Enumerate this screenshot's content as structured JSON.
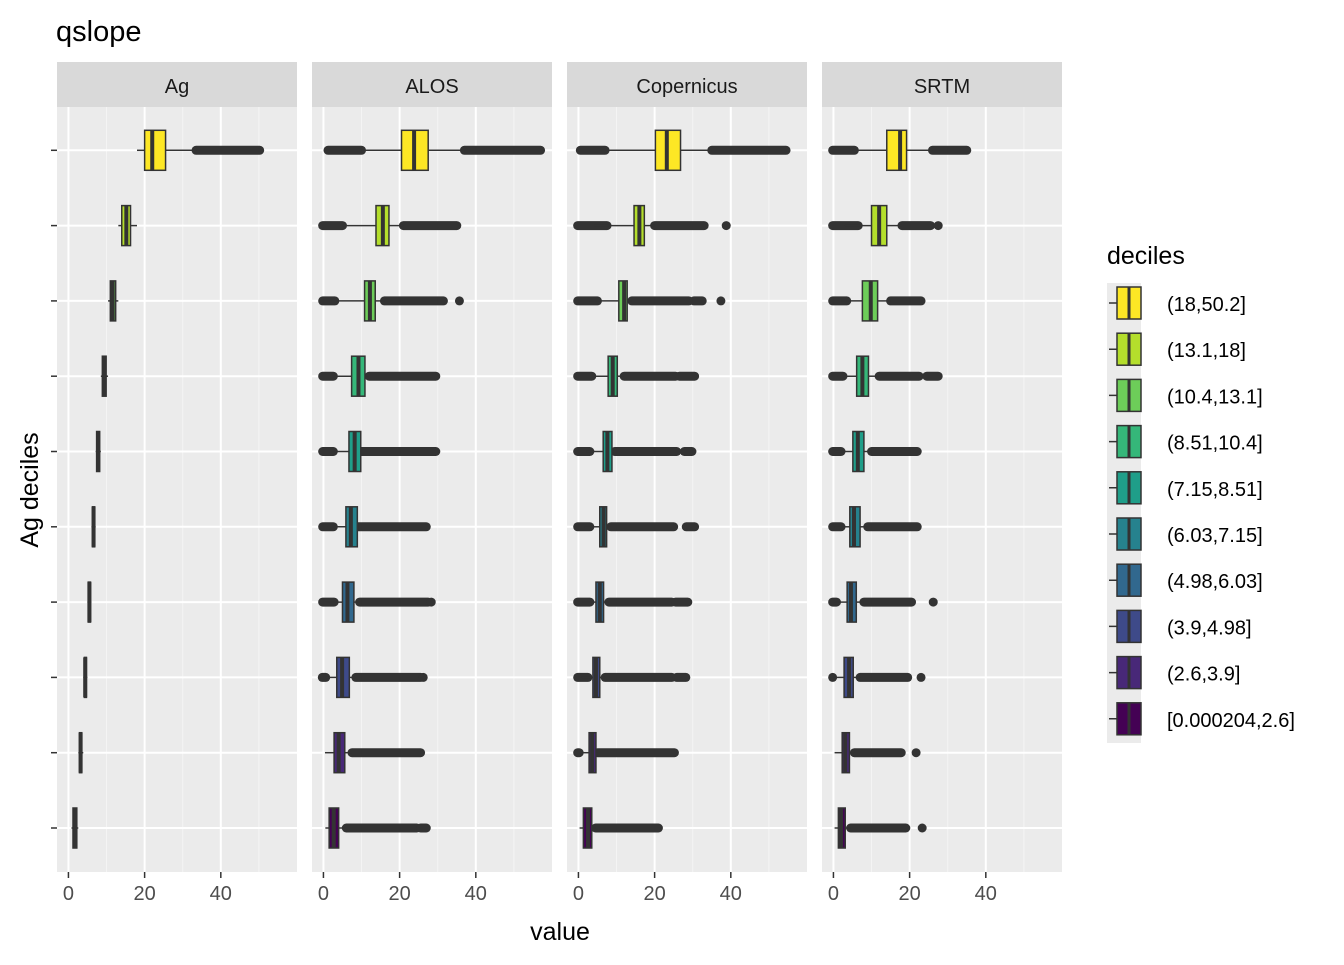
{
  "chart_data": {
    "type": "boxplot",
    "title": "qslope",
    "xlabel": "value",
    "ylabel": "Ag deciles",
    "xlim": [
      -3,
      60
    ],
    "x_ticks": [
      0,
      20,
      40
    ],
    "facets": [
      "Ag",
      "ALOS",
      "Copernicus",
      "SRTM"
    ],
    "legend": {
      "title": "deciles",
      "position": "right",
      "entries": [
        "(18,50.2]",
        "(13.1,18]",
        "(10.4,13.1]",
        "(8.51,10.4]",
        "(7.15,8.51]",
        "(6.03,7.15]",
        "(4.98,6.03]",
        "(3.9,4.98]",
        "(2.6,3.9]",
        "[0.000204,2.6]"
      ],
      "colors": [
        "#FDE725",
        "#B4DE2C",
        "#6DCD59",
        "#35B779",
        "#1F9E89",
        "#26828E",
        "#31688E",
        "#3E4A89",
        "#482878",
        "#440154"
      ]
    },
    "categories": [
      "[0.000204,2.6]",
      "(2.6,3.9]",
      "(3.9,4.98]",
      "(4.98,6.03]",
      "(6.03,7.15]",
      "(7.15,8.51]",
      "(8.51,10.4]",
      "(10.4,13.1]",
      "(13.1,18]",
      "(18,50.2]"
    ],
    "category_colors": [
      "#440154",
      "#482878",
      "#3E4A89",
      "#31688E",
      "#26828E",
      "#1F9E89",
      "#35B779",
      "#6DCD59",
      "#B4DE2C",
      "#FDE725"
    ],
    "series": [
      {
        "name": "Ag",
        "boxes": [
          {
            "lw": 0.8,
            "q1": 1.2,
            "med": 1.8,
            "q3": 2.2,
            "uw": 2.6,
            "outliers": []
          },
          {
            "lw": 2.6,
            "q1": 2.9,
            "med": 3.2,
            "q3": 3.5,
            "uw": 3.9,
            "outliers": []
          },
          {
            "lw": 3.9,
            "q1": 4.2,
            "med": 4.4,
            "q3": 4.7,
            "uw": 4.98,
            "outliers": []
          },
          {
            "lw": 4.98,
            "q1": 5.2,
            "med": 5.5,
            "q3": 5.8,
            "uw": 6.03,
            "outliers": []
          },
          {
            "lw": 6.03,
            "q1": 6.3,
            "med": 6.6,
            "q3": 6.9,
            "uw": 7.15,
            "outliers": []
          },
          {
            "lw": 7.15,
            "q1": 7.4,
            "med": 7.8,
            "q3": 8.2,
            "uw": 8.51,
            "outliers": []
          },
          {
            "lw": 8.51,
            "q1": 8.9,
            "med": 9.4,
            "q3": 9.9,
            "uw": 10.4,
            "outliers": []
          },
          {
            "lw": 10.4,
            "q1": 11.0,
            "med": 11.6,
            "q3": 12.4,
            "uw": 13.1,
            "outliers": []
          },
          {
            "lw": 13.1,
            "q1": 14.0,
            "med": 15.2,
            "q3": 16.3,
            "uw": 18.0,
            "outliers": []
          },
          {
            "lw": 18.0,
            "q1": 20.0,
            "med": 22.0,
            "q3": 25.5,
            "uw": 33.5,
            "outliers": [
              [
                33.5,
                50.2
              ]
            ]
          }
        ]
      },
      {
        "name": "ALOS",
        "boxes": [
          {
            "lw": 0.5,
            "q1": 1.5,
            "med": 2.7,
            "q3": 4.0,
            "uw": 6.0,
            "outliers": [
              [
                6.0,
                24.5
              ],
              [
                25.5,
                27.0
              ]
            ]
          },
          {
            "lw": 0.4,
            "q1": 2.8,
            "med": 4.0,
            "q3": 5.6,
            "uw": 7.5,
            "outliers": [
              [
                7.5,
                25.5
              ]
            ]
          },
          {
            "lw": 0.5,
            "q1": 3.5,
            "med": 4.9,
            "q3": 6.8,
            "uw": 8.5,
            "outliers": [
              [
                -0.3,
                0.6
              ],
              [
                8.5,
                25.5
              ],
              [
                26.2,
                26.2
              ]
            ]
          },
          {
            "lw": 0.6,
            "q1": 5.0,
            "med": 6.3,
            "q3": 8.0,
            "uw": 9.5,
            "outliers": [
              [
                -0.2,
                2.8
              ],
              [
                9.5,
                27.5
              ],
              [
                28.3,
                28.3
              ]
            ]
          },
          {
            "lw": 1.0,
            "q1": 5.9,
            "med": 7.2,
            "q3": 8.9,
            "uw": 8.9,
            "outliers": [
              [
                -0.2,
                2.6
              ],
              [
                8.9,
                27.0
              ]
            ]
          },
          {
            "lw": 2.8,
            "q1": 6.7,
            "med": 8.2,
            "q3": 9.8,
            "uw": 10.0,
            "outliers": [
              [
                -0.2,
                2.6
              ],
              [
                10.0,
                29.5
              ]
            ]
          },
          {
            "lw": 3.0,
            "q1": 7.4,
            "med": 9.2,
            "q3": 10.9,
            "uw": 12.0,
            "outliers": [
              [
                -0.2,
                2.6
              ],
              [
                12.0,
                29.5
              ]
            ]
          },
          {
            "lw": 3.5,
            "q1": 10.8,
            "med": 12.2,
            "q3": 13.6,
            "uw": 16.0,
            "outliers": [
              [
                -0.2,
                3.0
              ],
              [
                16.0,
                31.5
              ],
              [
                35.7,
                35.7
              ]
            ]
          },
          {
            "lw": 5.0,
            "q1": 13.8,
            "med": 15.6,
            "q3": 17.2,
            "uw": 21.0,
            "outliers": [
              [
                -0.2,
                5.0
              ],
              [
                21.0,
                35.0
              ]
            ]
          },
          {
            "lw": 10.0,
            "q1": 20.5,
            "med": 23.8,
            "q3": 27.5,
            "uw": 37.0,
            "outliers": [
              [
                1.2,
                10.0
              ],
              [
                37.0,
                57.0
              ]
            ]
          }
        ]
      },
      {
        "name": "Copernicus",
        "boxes": [
          {
            "lw": 0.3,
            "q1": 1.3,
            "med": 2.5,
            "q3": 3.5,
            "uw": 4.5,
            "outliers": [
              [
                4.5,
                21.0
              ]
            ]
          },
          {
            "lw": 0.6,
            "q1": 2.8,
            "med": 3.6,
            "q3": 4.6,
            "uw": 5.0,
            "outliers": [
              [
                -0.2,
                0.2
              ],
              [
                5.0,
                25.2
              ]
            ]
          },
          {
            "lw": 0.8,
            "q1": 3.8,
            "med": 4.6,
            "q3": 5.6,
            "uw": 7.0,
            "outliers": [
              [
                -0.2,
                2.5
              ],
              [
                7.0,
                24.5
              ],
              [
                25.8,
                28.2
              ]
            ]
          },
          {
            "lw": 1.0,
            "q1": 4.6,
            "med": 5.6,
            "q3": 6.6,
            "uw": 8.0,
            "outliers": [
              [
                -0.2,
                3.0
              ],
              [
                8.0,
                24.5
              ],
              [
                25.5,
                28.7
              ]
            ]
          },
          {
            "lw": 1.5,
            "q1": 5.6,
            "med": 6.6,
            "q3": 7.4,
            "uw": 8.5,
            "outliers": [
              [
                -0.2,
                3.0
              ],
              [
                8.5,
                25.0
              ],
              [
                28.3,
                30.5
              ]
            ]
          },
          {
            "lw": 2.0,
            "q1": 6.5,
            "med": 7.6,
            "q3": 8.8,
            "uw": 9.5,
            "outliers": [
              [
                -0.2,
                3.0
              ],
              [
                9.5,
                25.8
              ],
              [
                27.8,
                29.8
              ]
            ]
          },
          {
            "lw": 2.5,
            "q1": 7.8,
            "med": 9.0,
            "q3": 10.2,
            "uw": 12.0,
            "outliers": [
              [
                -0.2,
                3.5
              ],
              [
                12.0,
                25.5
              ],
              [
                26.5,
                30.5
              ]
            ]
          },
          {
            "lw": 3.0,
            "q1": 10.6,
            "med": 12.0,
            "q3": 12.8,
            "uw": 14.0,
            "outliers": [
              [
                -0.2,
                5.0
              ],
              [
                14.0,
                29.0
              ],
              [
                30.3,
                32.5
              ],
              [
                37.4,
                37.4
              ]
            ]
          },
          {
            "lw": 4.0,
            "q1": 14.6,
            "med": 16.0,
            "q3": 17.3,
            "uw": 20.0,
            "outliers": [
              [
                -0.2,
                7.5
              ],
              [
                20.0,
                33.0
              ],
              [
                38.8,
                38.8
              ]
            ]
          },
          {
            "lw": 7.0,
            "q1": 20.2,
            "med": 23.2,
            "q3": 26.8,
            "uw": 35.0,
            "outliers": [
              [
                0.5,
                7.0
              ],
              [
                35.0,
                54.5
              ]
            ]
          }
        ]
      },
      {
        "name": "SRTM",
        "boxes": [
          {
            "lw": 0.3,
            "q1": 1.3,
            "med": 2.0,
            "q3": 3.1,
            "uw": 4.5,
            "outliers": [
              [
                4.5,
                19.0
              ],
              [
                23.3,
                23.3
              ]
            ]
          },
          {
            "lw": 0.3,
            "q1": 2.3,
            "med": 3.1,
            "q3": 4.2,
            "uw": 5.5,
            "outliers": [
              [
                5.5,
                17.8
              ],
              [
                21.7,
                21.7
              ]
            ]
          },
          {
            "lw": 0.3,
            "q1": 2.8,
            "med": 4.1,
            "q3": 5.2,
            "uw": 7.0,
            "outliers": [
              [
                -0.2,
                -0.2
              ],
              [
                7.0,
                19.5
              ],
              [
                23.0,
                23.0
              ]
            ]
          },
          {
            "lw": 0.3,
            "q1": 3.6,
            "med": 4.6,
            "q3": 6.0,
            "uw": 8.0,
            "outliers": [
              [
                -0.2,
                0.8
              ],
              [
                8.0,
                20.5
              ],
              [
                26.2,
                26.2
              ]
            ]
          },
          {
            "lw": 0.3,
            "q1": 4.3,
            "med": 5.4,
            "q3": 7.0,
            "uw": 9.0,
            "outliers": [
              [
                -0.2,
                2.0
              ],
              [
                9.0,
                22.0
              ]
            ]
          },
          {
            "lw": 0.3,
            "q1": 5.1,
            "med": 6.4,
            "q3": 8.0,
            "uw": 10.0,
            "outliers": [
              [
                -0.2,
                2.0
              ],
              [
                10.0,
                22.0
              ]
            ]
          },
          {
            "lw": 1.0,
            "q1": 6.1,
            "med": 7.6,
            "q3": 9.2,
            "uw": 12.0,
            "outliers": [
              [
                -0.2,
                2.5
              ],
              [
                12.0,
                22.5
              ],
              [
                24.5,
                27.5
              ]
            ]
          },
          {
            "lw": 2.0,
            "q1": 7.6,
            "med": 9.8,
            "q3": 11.6,
            "uw": 15.0,
            "outliers": [
              [
                -0.2,
                3.5
              ],
              [
                15.0,
                23.0
              ]
            ]
          },
          {
            "lw": 3.0,
            "q1": 10.0,
            "med": 12.0,
            "q3": 14.0,
            "uw": 18.0,
            "outliers": [
              [
                -0.2,
                6.5
              ],
              [
                18.0,
                25.5
              ],
              [
                27.5,
                27.5
              ]
            ]
          },
          {
            "lw": 5.0,
            "q1": 14.0,
            "med": 17.5,
            "q3": 19.2,
            "uw": 26.0,
            "outliers": [
              [
                -0.2,
                5.5
              ],
              [
                26.0,
                35.0
              ]
            ]
          }
        ]
      }
    ]
  }
}
